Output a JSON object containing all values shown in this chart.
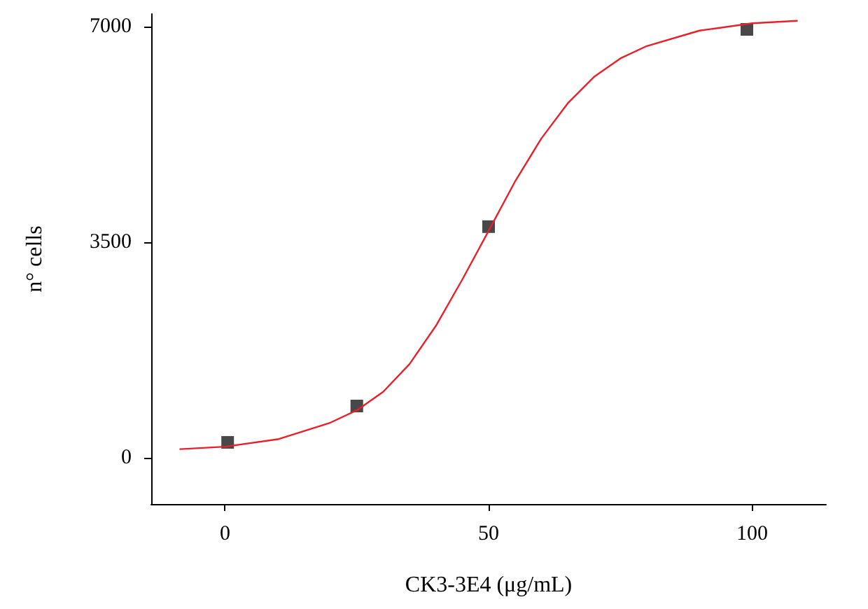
{
  "chart_data": {
    "type": "scatter",
    "xlabel": "CK3-3E4 (μg/mL)",
    "ylabel": "n° cells",
    "xlim": [
      -14,
      114
    ],
    "ylim": [
      -750,
      7200
    ],
    "xticks": [
      0,
      50,
      100
    ],
    "yticks": [
      0,
      3500,
      7000
    ],
    "grid": false,
    "series": [
      {
        "type": "line",
        "color": "#e8202a",
        "marker": "none",
        "line_style": "solid",
        "x": [
          -8.5,
          0,
          10,
          20,
          25,
          30,
          35,
          40,
          45,
          50,
          55,
          60,
          65,
          70,
          75,
          80,
          90,
          100,
          108.5
        ],
        "values": [
          140,
          180,
          300,
          570,
          770,
          1070,
          1520,
          2140,
          2890,
          3680,
          4480,
          5180,
          5750,
          6180,
          6480,
          6680,
          6930,
          7050,
          7090
        ]
      },
      {
        "color": "#1a1a1a",
        "marker": "square",
        "x": [
          0.5,
          25,
          50,
          99
        ],
        "values": [
          250,
          840,
          3750,
          6950
        ]
      }
    ]
  }
}
